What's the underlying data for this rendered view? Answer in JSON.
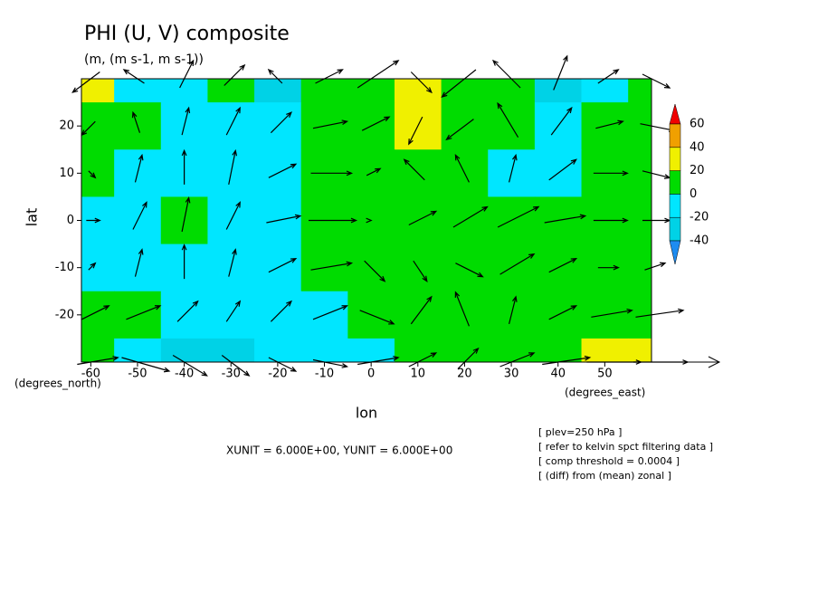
{
  "chart_data": {
    "type": "contour-vector",
    "title": "PHI (U, V) composite",
    "subtitle": "(m, (m s-1, m s-1))",
    "x_label": "lon",
    "y_label": "lat",
    "x_units": "(degrees_east)",
    "y_units": "(degrees_north)",
    "xlim": [
      -62,
      60
    ],
    "ylim": [
      -30,
      30
    ],
    "xticks": [
      -60,
      -50,
      -40,
      -30,
      -20,
      -10,
      0,
      10,
      20,
      30,
      40,
      50
    ],
    "yticks": [
      -20,
      -10,
      0,
      10,
      20
    ],
    "lon": [
      -60,
      -50,
      -40,
      -30,
      -20,
      -10,
      0,
      10,
      20,
      30,
      40,
      50,
      60
    ],
    "lat": [
      30,
      20,
      10,
      0,
      -10,
      -20,
      -30
    ],
    "phi": [
      [
        25,
        -10,
        -10,
        5,
        -30,
        5,
        10,
        30,
        15,
        5,
        -25,
        -10,
        5
      ],
      [
        10,
        5,
        -10,
        -15,
        -15,
        5,
        10,
        25,
        10,
        5,
        -15,
        5,
        5
      ],
      [
        10,
        -5,
        -10,
        -10,
        -10,
        5,
        10,
        10,
        5,
        -10,
        -15,
        5,
        10
      ],
      [
        -10,
        -10,
        5,
        -10,
        -10,
        5,
        10,
        10,
        10,
        10,
        10,
        5,
        5
      ],
      [
        -10,
        -10,
        -10,
        -10,
        -10,
        5,
        10,
        10,
        10,
        10,
        10,
        5,
        5
      ],
      [
        5,
        5,
        -10,
        -10,
        -10,
        -10,
        5,
        10,
        10,
        10,
        5,
        10,
        15
      ],
      [
        5,
        -10,
        -25,
        -25,
        -10,
        -10,
        -10,
        5,
        5,
        5,
        5,
        25,
        25
      ]
    ],
    "u": [
      [
        -4,
        -3,
        2,
        3,
        -2,
        4,
        6,
        3,
        -5,
        -4,
        2,
        3,
        4
      ],
      [
        -2,
        -1,
        1,
        2,
        3,
        5,
        4,
        -2,
        -4,
        -3,
        3,
        4,
        5
      ],
      [
        1,
        1,
        0,
        1,
        4,
        6,
        2,
        -3,
        -2,
        1,
        4,
        5,
        4
      ],
      [
        2,
        2,
        1,
        2,
        5,
        7,
        0,
        4,
        5,
        6,
        6,
        5,
        4
      ],
      [
        1,
        1,
        0,
        1,
        4,
        6,
        3,
        2,
        4,
        5,
        4,
        3,
        3
      ],
      [
        4,
        5,
        3,
        2,
        3,
        5,
        5,
        3,
        -2,
        1,
        4,
        6,
        7
      ],
      [
        6,
        7,
        5,
        4,
        4,
        5,
        6,
        4,
        3,
        5,
        7,
        8,
        8
      ]
    ],
    "v": [
      [
        -3,
        2,
        4,
        3,
        2,
        2,
        4,
        -3,
        -4,
        4,
        5,
        2,
        -2
      ],
      [
        -2,
        3,
        4,
        4,
        3,
        1,
        2,
        -4,
        -3,
        5,
        4,
        1,
        -1
      ],
      [
        -1,
        4,
        5,
        5,
        2,
        0,
        1,
        3,
        4,
        4,
        3,
        0,
        -1
      ],
      [
        0,
        4,
        5,
        4,
        1,
        0,
        0,
        2,
        3,
        3,
        1,
        0,
        0
      ],
      [
        1,
        4,
        5,
        4,
        2,
        1,
        -3,
        -3,
        -2,
        3,
        2,
        0,
        1
      ],
      [
        2,
        2,
        3,
        3,
        3,
        2,
        -2,
        4,
        5,
        4,
        2,
        1,
        1
      ],
      [
        1,
        -2,
        -3,
        -3,
        -2,
        -1,
        1,
        2,
        3,
        2,
        1,
        0,
        0
      ]
    ],
    "colorbar": {
      "levels": [
        -40,
        -20,
        0,
        20,
        40,
        60
      ],
      "colors": [
        "#1e8cf0",
        "#00d2e6",
        "#00e6ff",
        "#00dc00",
        "#f0f000",
        "#f0a000",
        "#f00000"
      ]
    },
    "unit_note": "XUNIT = 6.000E+00, YUNIT = 6.000E+00",
    "notes": [
      "[ plev=250 hPa ]",
      "[ refer to kelvin spct filtering data ]",
      "[ comp threshold = 0.0004 ]",
      "[ (diff) from (mean) zonal ]"
    ]
  }
}
